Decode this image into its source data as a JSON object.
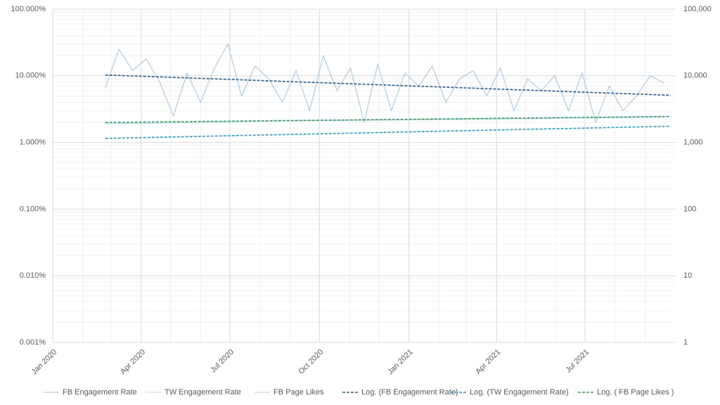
{
  "chart_data": {
    "type": "line",
    "xlim": [
      "2020-01-01",
      "2021-09-30"
    ],
    "xticks": [
      {
        "value": "2020-01-01",
        "label": "Jan 2020"
      },
      {
        "value": "2020-04-01",
        "label": "Apr 2020"
      },
      {
        "value": "2020-07-01",
        "label": "Jul 2020"
      },
      {
        "value": "2020-10-01",
        "label": "Oct 2020"
      },
      {
        "value": "2021-01-01",
        "label": "Jan 2021"
      },
      {
        "value": "2021-04-01",
        "label": "Apr 2021"
      },
      {
        "value": "2021-07-01",
        "label": "Jul 2021"
      }
    ],
    "ylim": [
      0.001,
      100
    ],
    "yticks": [
      {
        "value": 0.001,
        "label": "0.001%"
      },
      {
        "value": 0.01,
        "label": "0.010%"
      },
      {
        "value": 0.1,
        "label": "0.100%"
      },
      {
        "value": 1,
        "label": "1.000%"
      },
      {
        "value": 10,
        "label": "10.000%"
      },
      {
        "value": 100,
        "label": "100.000%"
      }
    ],
    "y2lim": [
      1,
      100000
    ],
    "y2ticks": [
      1,
      10,
      100,
      {
        "value": 1000,
        "label": "1,000"
      },
      {
        "value": 10000,
        "label": "10,000"
      },
      {
        "value": 100000,
        "label": "100,000"
      }
    ],
    "log_scale": true,
    "grid": true,
    "minor_grid": true,
    "legend": "bottom",
    "series": [
      {
        "name": "FB Engagement Rate",
        "color": "#9dc3e6",
        "x": [
          "2020-02-24",
          "2020-03-09",
          "2020-03-23",
          "2020-04-06",
          "2020-04-20",
          "2020-05-04",
          "2020-05-18",
          "2020-06-01",
          "2020-06-15",
          "2020-06-29",
          "2020-07-13",
          "2020-07-27",
          "2020-08-10",
          "2020-08-24",
          "2020-09-07",
          "2020-09-21",
          "2020-10-05",
          "2020-10-19",
          "2020-11-02",
          "2020-11-16",
          "2020-11-30",
          "2020-12-14",
          "2020-12-28",
          "2021-01-11",
          "2021-01-25",
          "2021-02-08",
          "2021-02-22",
          "2021-03-08",
          "2021-03-22",
          "2021-04-05",
          "2021-04-19",
          "2021-05-03",
          "2021-05-17",
          "2021-05-31",
          "2021-06-14",
          "2021-06-28",
          "2021-07-12",
          "2021-07-26",
          "2021-08-09",
          "2021-08-23",
          "2021-09-06",
          "2021-09-20"
        ],
        "values": [
          6.5,
          25,
          12,
          18,
          8,
          2.5,
          11,
          4,
          13,
          30,
          5,
          14,
          9,
          4,
          12,
          3,
          20,
          6,
          13,
          2,
          15,
          3,
          11,
          7,
          14,
          4,
          9,
          12,
          5,
          13,
          3,
          9,
          6,
          10,
          3,
          11,
          2,
          7,
          3,
          5,
          10,
          7.8
        ]
      },
      {
        "name": "TW Engagement Rate",
        "color": "#c5dcef",
        "x": [
          "2020-02-24",
          "2020-08-24",
          "2021-02-22",
          "2021-09-20"
        ],
        "values": [
          1.9,
          2.1,
          2.2,
          2.4
        ]
      },
      {
        "name": "FB Page Likes",
        "color": "#b4d3ec",
        "axis": "y2",
        "x": [
          "2020-02-24",
          "2020-08-24",
          "2021-02-22",
          "2021-09-20"
        ],
        "values": [
          1900,
          2100,
          2250,
          2450
        ]
      },
      {
        "name": "Log. (FB Engagement Rate)",
        "color": "#1f5f9e",
        "dash": true,
        "x": [
          "2020-02-24",
          "2021-09-27"
        ],
        "values": [
          10.3,
          5.1
        ]
      },
      {
        "name": "Log. (TW Engagement Rate)",
        "color": "#1ba1d6",
        "dash": true,
        "x": [
          "2020-02-24",
          "2021-09-27"
        ],
        "values": [
          1.15,
          1.75
        ]
      },
      {
        "name": "Log. ( FB Page Likes )",
        "color": "#2aa84a",
        "dash": true,
        "axis": "y2",
        "x": [
          "2020-02-24",
          "2021-09-27"
        ],
        "values": [
          1990,
          2450
        ]
      }
    ]
  }
}
